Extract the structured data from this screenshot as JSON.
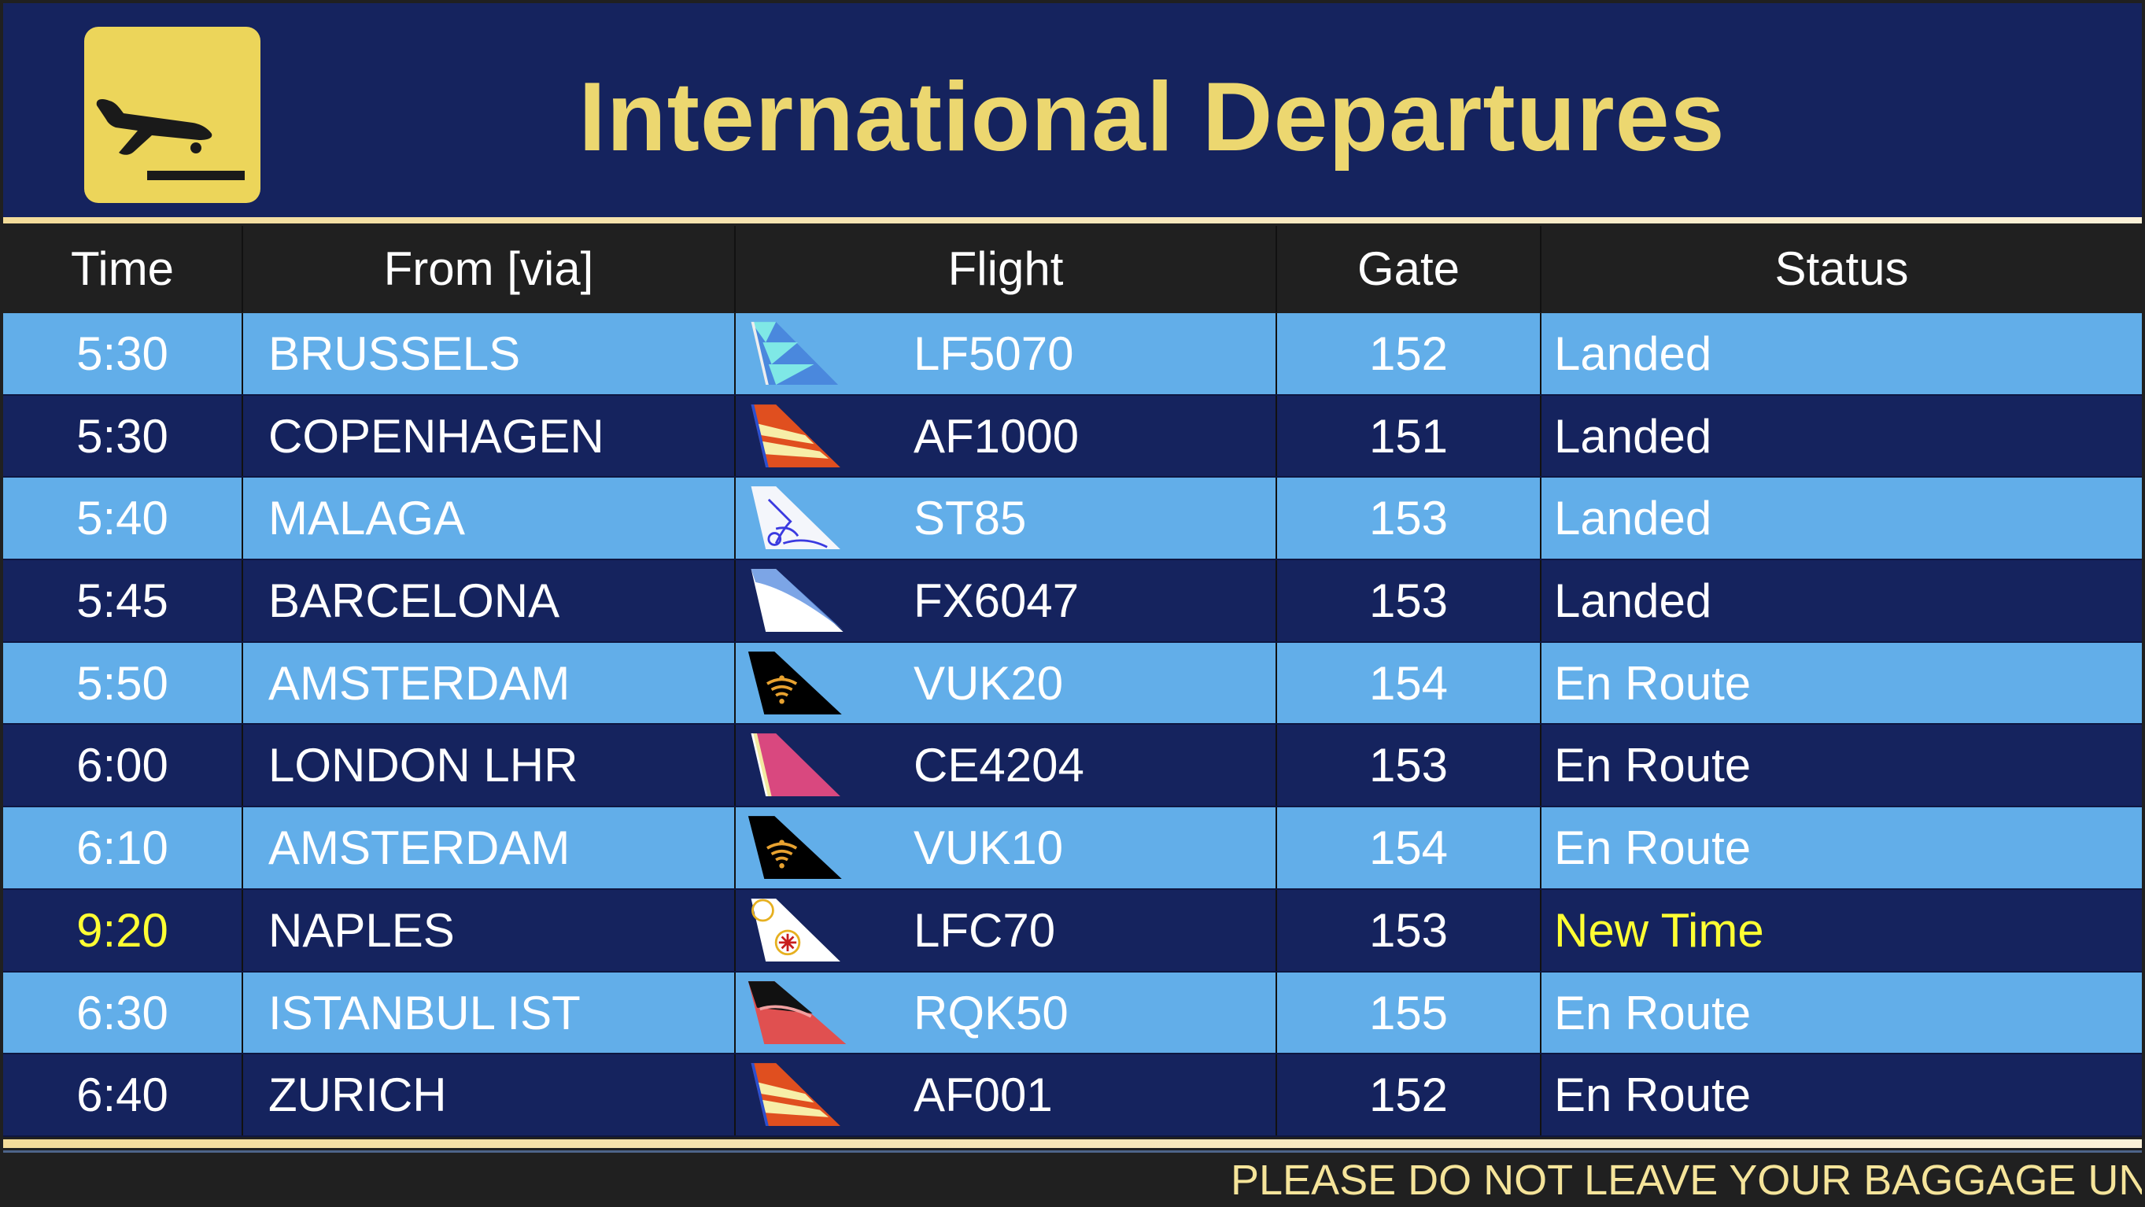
{
  "header": {
    "title": "International Departures",
    "logo_icon": "plane-landing-icon"
  },
  "columns": {
    "time": "Time",
    "from": "From [via]",
    "flight": "Flight",
    "gate": "Gate",
    "status": "Status"
  },
  "colors": {
    "navy": "#15235e",
    "light_blue": "#62aee9",
    "gold": "#ecd55a",
    "highlight": "#ffff33"
  },
  "flights": [
    {
      "time": "5:30",
      "from": "BRUSSELS",
      "flight": "LF5070",
      "gate": "152",
      "status": "Landed",
      "tail": "blue-triangles",
      "highlight": false
    },
    {
      "time": "5:30",
      "from": "COPENHAGEN",
      "flight": "AF1000",
      "gate": "151",
      "status": "Landed",
      "tail": "orange-stripes",
      "highlight": false
    },
    {
      "time": "5:40",
      "from": "MALAGA",
      "flight": "ST85",
      "gate": "153",
      "status": "Landed",
      "tail": "white-blue-pattern",
      "highlight": false
    },
    {
      "time": "5:45",
      "from": "BARCELONA",
      "flight": "FX6047",
      "gate": "153",
      "status": "Landed",
      "tail": "white-blue-swoosh",
      "highlight": false
    },
    {
      "time": "5:50",
      "from": "AMSTERDAM",
      "flight": "VUK20",
      "gate": "154",
      "status": "En Route",
      "tail": "black-wifi",
      "highlight": false
    },
    {
      "time": "6:00",
      "from": "LONDON LHR",
      "flight": "CE4204",
      "gate": "153",
      "status": "En Route",
      "tail": "pink",
      "highlight": false
    },
    {
      "time": "6:10",
      "from": "AMSTERDAM",
      "flight": "VUK10",
      "gate": "154",
      "status": "En Route",
      "tail": "black-wifi",
      "highlight": false
    },
    {
      "time": "9:20",
      "from": "NAPLES",
      "flight": "LFC70",
      "gate": "153",
      "status": "New Time",
      "tail": "white-medallions",
      "highlight": true
    },
    {
      "time": "6:30",
      "from": "ISTANBUL IST",
      "flight": "RQK50",
      "gate": "155",
      "status": "En Route",
      "tail": "black-red",
      "highlight": false
    },
    {
      "time": "6:40",
      "from": "ZURICH",
      "flight": "AF001",
      "gate": "152",
      "status": "En Route",
      "tail": "orange-stripes",
      "highlight": false
    }
  ],
  "ticker": "PLEASE DO NOT LEAVE YOUR BAGGAGE UN ATT"
}
